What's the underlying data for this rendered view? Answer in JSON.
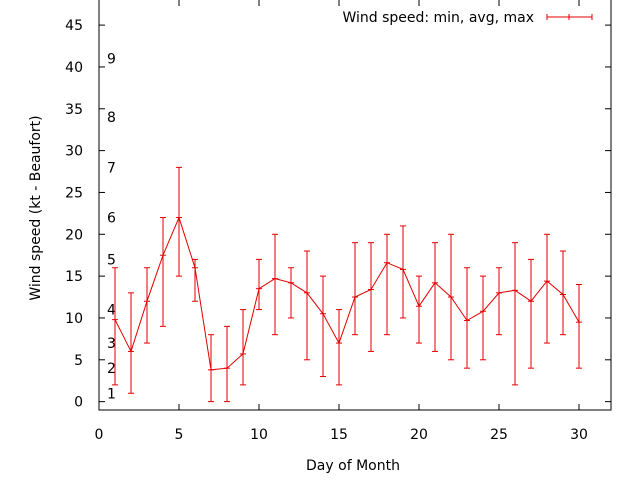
{
  "chart_data": {
    "type": "line",
    "title": "",
    "xlabel": "Day of Month",
    "ylabel": "Wind speed (kt - Beaufort)",
    "xlim": [
      0,
      32
    ],
    "ylim": [
      -1,
      48
    ],
    "grid": false,
    "legend_position": "top-right",
    "x_ticks": [
      0,
      5,
      10,
      15,
      20,
      25,
      30
    ],
    "y_ticks": [
      0,
      5,
      10,
      15,
      20,
      25,
      30,
      35,
      40,
      45
    ],
    "beaufort_levels": [
      {
        "label": "1",
        "y": 1
      },
      {
        "label": "2",
        "y": 4
      },
      {
        "label": "3",
        "y": 7
      },
      {
        "label": "4",
        "y": 11
      },
      {
        "label": "5",
        "y": 17
      },
      {
        "label": "6",
        "y": 22
      },
      {
        "label": "7",
        "y": 28
      },
      {
        "label": "8",
        "y": 34
      },
      {
        "label": "9",
        "y": 41
      }
    ],
    "series": [
      {
        "name": "Wind speed: min, avg, max",
        "color": "#e00000",
        "points": [
          {
            "x": 1,
            "y": 9.8,
            "min": 2,
            "max": 16
          },
          {
            "x": 2,
            "y": 6.0,
            "min": 1,
            "max": 13
          },
          {
            "x": 3,
            "y": 12.0,
            "min": 7,
            "max": 16
          },
          {
            "x": 4,
            "y": 17.5,
            "min": 9,
            "max": 22
          },
          {
            "x": 5,
            "y": 22.0,
            "min": 15,
            "max": 28
          },
          {
            "x": 6,
            "y": 16.0,
            "min": 12,
            "max": 17
          },
          {
            "x": 7,
            "y": 3.8,
            "min": 0,
            "max": 8
          },
          {
            "x": 8,
            "y": 4.0,
            "min": 0,
            "max": 9
          },
          {
            "x": 9,
            "y": 5.7,
            "min": 2,
            "max": 11
          },
          {
            "x": 10,
            "y": 13.5,
            "min": 11,
            "max": 17
          },
          {
            "x": 11,
            "y": 14.7,
            "min": 8,
            "max": 20
          },
          {
            "x": 12,
            "y": 14.2,
            "min": 10,
            "max": 16
          },
          {
            "x": 13,
            "y": 13.0,
            "min": 5,
            "max": 18
          },
          {
            "x": 14,
            "y": 10.5,
            "min": 3,
            "max": 15
          },
          {
            "x": 15,
            "y": 7.0,
            "min": 2,
            "max": 11
          },
          {
            "x": 16,
            "y": 12.5,
            "min": 8,
            "max": 19
          },
          {
            "x": 17,
            "y": 13.4,
            "min": 6,
            "max": 19
          },
          {
            "x": 18,
            "y": 16.6,
            "min": 8,
            "max": 20
          },
          {
            "x": 19,
            "y": 15.8,
            "min": 10,
            "max": 21
          },
          {
            "x": 20,
            "y": 11.4,
            "min": 7,
            "max": 15
          },
          {
            "x": 21,
            "y": 14.2,
            "min": 6,
            "max": 19
          },
          {
            "x": 22,
            "y": 12.5,
            "min": 5,
            "max": 20
          },
          {
            "x": 23,
            "y": 9.7,
            "min": 4,
            "max": 16
          },
          {
            "x": 24,
            "y": 10.8,
            "min": 5,
            "max": 15
          },
          {
            "x": 25,
            "y": 13.0,
            "min": 8,
            "max": 16
          },
          {
            "x": 26,
            "y": 13.3,
            "min": 2,
            "max": 19
          },
          {
            "x": 27,
            "y": 12.0,
            "min": 4,
            "max": 17
          },
          {
            "x": 28,
            "y": 14.4,
            "min": 7,
            "max": 20
          },
          {
            "x": 29,
            "y": 12.8,
            "min": 8,
            "max": 18
          },
          {
            "x": 30,
            "y": 9.5,
            "min": 4,
            "max": 14
          }
        ]
      }
    ]
  }
}
